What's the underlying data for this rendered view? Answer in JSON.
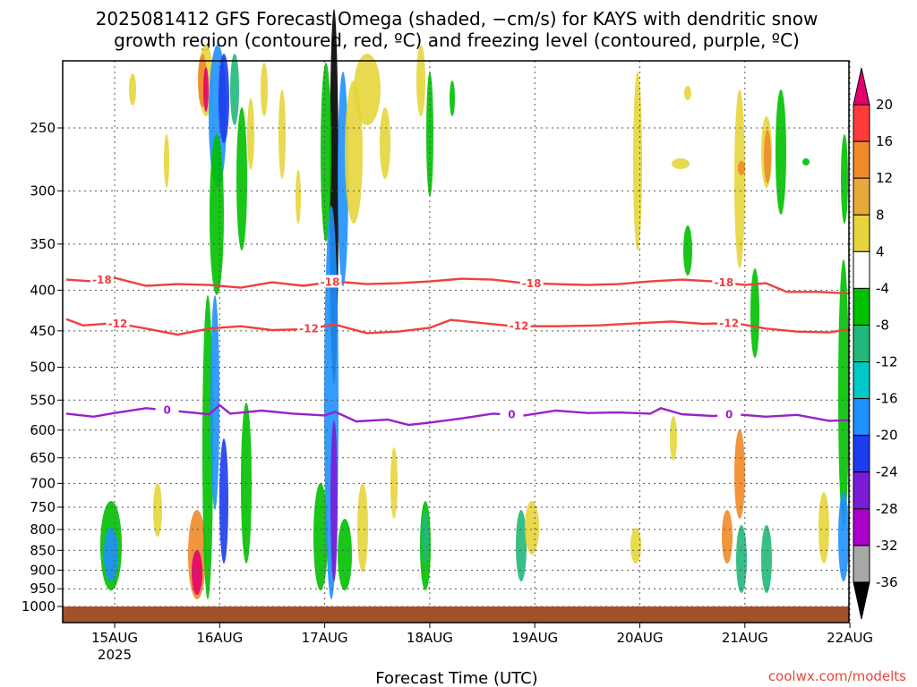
{
  "chart_data": {
    "type": "heatmap",
    "title_lines": [
      "2025081412 GFS Forecast Omega (shaded, −cm/s) for KAYS with dendritic snow",
      "growth region (contoured, red, ºC) and freezing level (contoured, purple, ºC)"
    ],
    "xlabel": "Forecast Time (UTC)",
    "credit": "coolwx.com/modelts",
    "credit_color": "#e8463a",
    "x_ticks": [
      {
        "t": 0,
        "label": "15AUG",
        "sub": "2025"
      },
      {
        "t": 1,
        "label": "16AUG",
        "sub": ""
      },
      {
        "t": 2,
        "label": "17AUG",
        "sub": ""
      },
      {
        "t": 3,
        "label": "18AUG",
        "sub": ""
      },
      {
        "t": 4,
        "label": "19AUG",
        "sub": ""
      },
      {
        "t": 5,
        "label": "20AUG",
        "sub": ""
      },
      {
        "t": 6,
        "label": "21AUG",
        "sub": ""
      },
      {
        "t": 7,
        "label": "22AUG",
        "sub": ""
      }
    ],
    "xlim_days": [
      -0.46,
      7.0
    ],
    "ylim_hpa": [
      200,
      1020
    ],
    "y_scale": "log",
    "y_ticks": [
      250,
      300,
      350,
      400,
      450,
      500,
      550,
      600,
      650,
      700,
      750,
      800,
      850,
      900,
      950,
      1000
    ],
    "grid": true,
    "surface_color": "#a0522d",
    "colorbar": {
      "labels": [
        "20",
        "16",
        "12",
        "8",
        "4",
        "-4",
        "-8",
        "-12",
        "-16",
        "-20",
        "-24",
        "-28",
        "-32",
        "-36"
      ],
      "bins": [
        "#e6006e",
        "#ff3b3b",
        "#f08a2a",
        "#e8a93c",
        "#e6d53c",
        "#ffffff",
        "#00c000",
        "#22b87a",
        "#00c8c8",
        "#1e90ff",
        "#1c3cf0",
        "#7a1cd6",
        "#aa00cc",
        "#a8a8a8",
        "#000000"
      ]
    },
    "contours": [
      {
        "name": "-18",
        "color": "#f04040",
        "points": [
          [
            -0.46,
            388
          ],
          [
            -0.2,
            390
          ],
          [
            0.0,
            386
          ],
          [
            0.3,
            395
          ],
          [
            0.6,
            393
          ],
          [
            0.9,
            394
          ],
          [
            1.2,
            397
          ],
          [
            1.5,
            391
          ],
          [
            1.8,
            395
          ],
          [
            2.1,
            390
          ],
          [
            2.4,
            393
          ],
          [
            2.7,
            392
          ],
          [
            3.0,
            390
          ],
          [
            3.3,
            387
          ],
          [
            3.6,
            388
          ],
          [
            3.9,
            392
          ],
          [
            4.2,
            393
          ],
          [
            4.5,
            394
          ],
          [
            4.8,
            393
          ],
          [
            5.1,
            390
          ],
          [
            5.4,
            388
          ],
          [
            5.7,
            390
          ],
          [
            6.0,
            394
          ],
          [
            6.2,
            392
          ],
          [
            6.4,
            402
          ],
          [
            6.7,
            402
          ],
          [
            7.0,
            404
          ]
        ],
        "label_at": [
          -0.12,
          2.05,
          3.97,
          5.8
        ]
      },
      {
        "name": "-12",
        "color": "#f04040",
        "points": [
          [
            -0.46,
            435
          ],
          [
            -0.3,
            443
          ],
          [
            0.0,
            440
          ],
          [
            0.3,
            447
          ],
          [
            0.6,
            455
          ],
          [
            0.9,
            447
          ],
          [
            1.2,
            444
          ],
          [
            1.5,
            449
          ],
          [
            1.8,
            448
          ],
          [
            2.1,
            442
          ],
          [
            2.4,
            453
          ],
          [
            2.7,
            451
          ],
          [
            3.0,
            446
          ],
          [
            3.2,
            436
          ],
          [
            3.5,
            440
          ],
          [
            3.8,
            444
          ],
          [
            4.2,
            444
          ],
          [
            4.6,
            443
          ],
          [
            5.0,
            440
          ],
          [
            5.3,
            438
          ],
          [
            5.6,
            441
          ],
          [
            5.9,
            440
          ],
          [
            6.2,
            447
          ],
          [
            6.5,
            451
          ],
          [
            6.8,
            452
          ],
          [
            7.0,
            448
          ]
        ],
        "label_at": [
          0.03,
          1.85,
          3.85,
          5.85
        ]
      },
      {
        "name": "0",
        "color": "#9a20c8",
        "points": [
          [
            -0.46,
            572
          ],
          [
            -0.2,
            577
          ],
          [
            0.0,
            571
          ],
          [
            0.3,
            563
          ],
          [
            0.6,
            568
          ],
          [
            0.9,
            573
          ],
          [
            1.0,
            558
          ],
          [
            1.1,
            572
          ],
          [
            1.4,
            567
          ],
          [
            1.7,
            572
          ],
          [
            2.0,
            575
          ],
          [
            2.1,
            569
          ],
          [
            2.3,
            585
          ],
          [
            2.6,
            582
          ],
          [
            2.8,
            591
          ],
          [
            3.0,
            587
          ],
          [
            3.3,
            580
          ],
          [
            3.6,
            572
          ],
          [
            3.9,
            575
          ],
          [
            4.2,
            567
          ],
          [
            4.5,
            571
          ],
          [
            4.8,
            570
          ],
          [
            5.1,
            572
          ],
          [
            5.2,
            563
          ],
          [
            5.4,
            573
          ],
          [
            5.7,
            576
          ],
          [
            5.9,
            573
          ],
          [
            6.2,
            577
          ],
          [
            6.5,
            574
          ],
          [
            6.8,
            584
          ],
          [
            7.0,
            583
          ]
        ],
        "label_at": [
          0.5,
          3.78,
          5.85
        ]
      }
    ]
  }
}
